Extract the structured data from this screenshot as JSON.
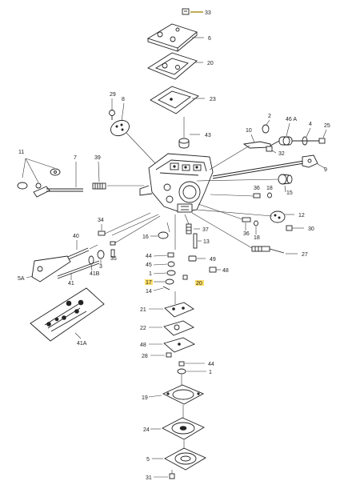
{
  "labels": {
    "l33": "33",
    "l6": "6",
    "l20a": "20",
    "l23": "23",
    "l43": "43",
    "l29": "29",
    "l8": "8",
    "l11": "11",
    "l7": "7",
    "l39": "39",
    "l10": "10",
    "l2": "2",
    "l46a": "46 A",
    "l4": "4",
    "l25": "25",
    "l32": "32",
    "l9": "9",
    "l36a": "36",
    "l18a": "18",
    "l15": "15",
    "l12": "12",
    "l30": "30",
    "l34": "34",
    "l40": "40",
    "l37": "37",
    "l36b": "36",
    "l18b": "18",
    "l13": "13",
    "l16": "16",
    "l35": "35",
    "l3": "3",
    "l41b": "41B",
    "l5a": "5A",
    "l41": "41",
    "l44a": "44",
    "l45": "45",
    "l1a": "1",
    "l17": "17",
    "l14": "14",
    "l20b": "20",
    "l49": "49",
    "l48a": "48",
    "l27": "27",
    "l21": "21",
    "l22": "22",
    "l48b": "48",
    "l28": "28",
    "l44b": "44",
    "l1b": "1",
    "l19": "19",
    "l24": "24",
    "l5": "5",
    "l31": "31",
    "l41a": "41A"
  },
  "colors": {
    "highlight": "#ffe066",
    "ink": "#222222"
  }
}
